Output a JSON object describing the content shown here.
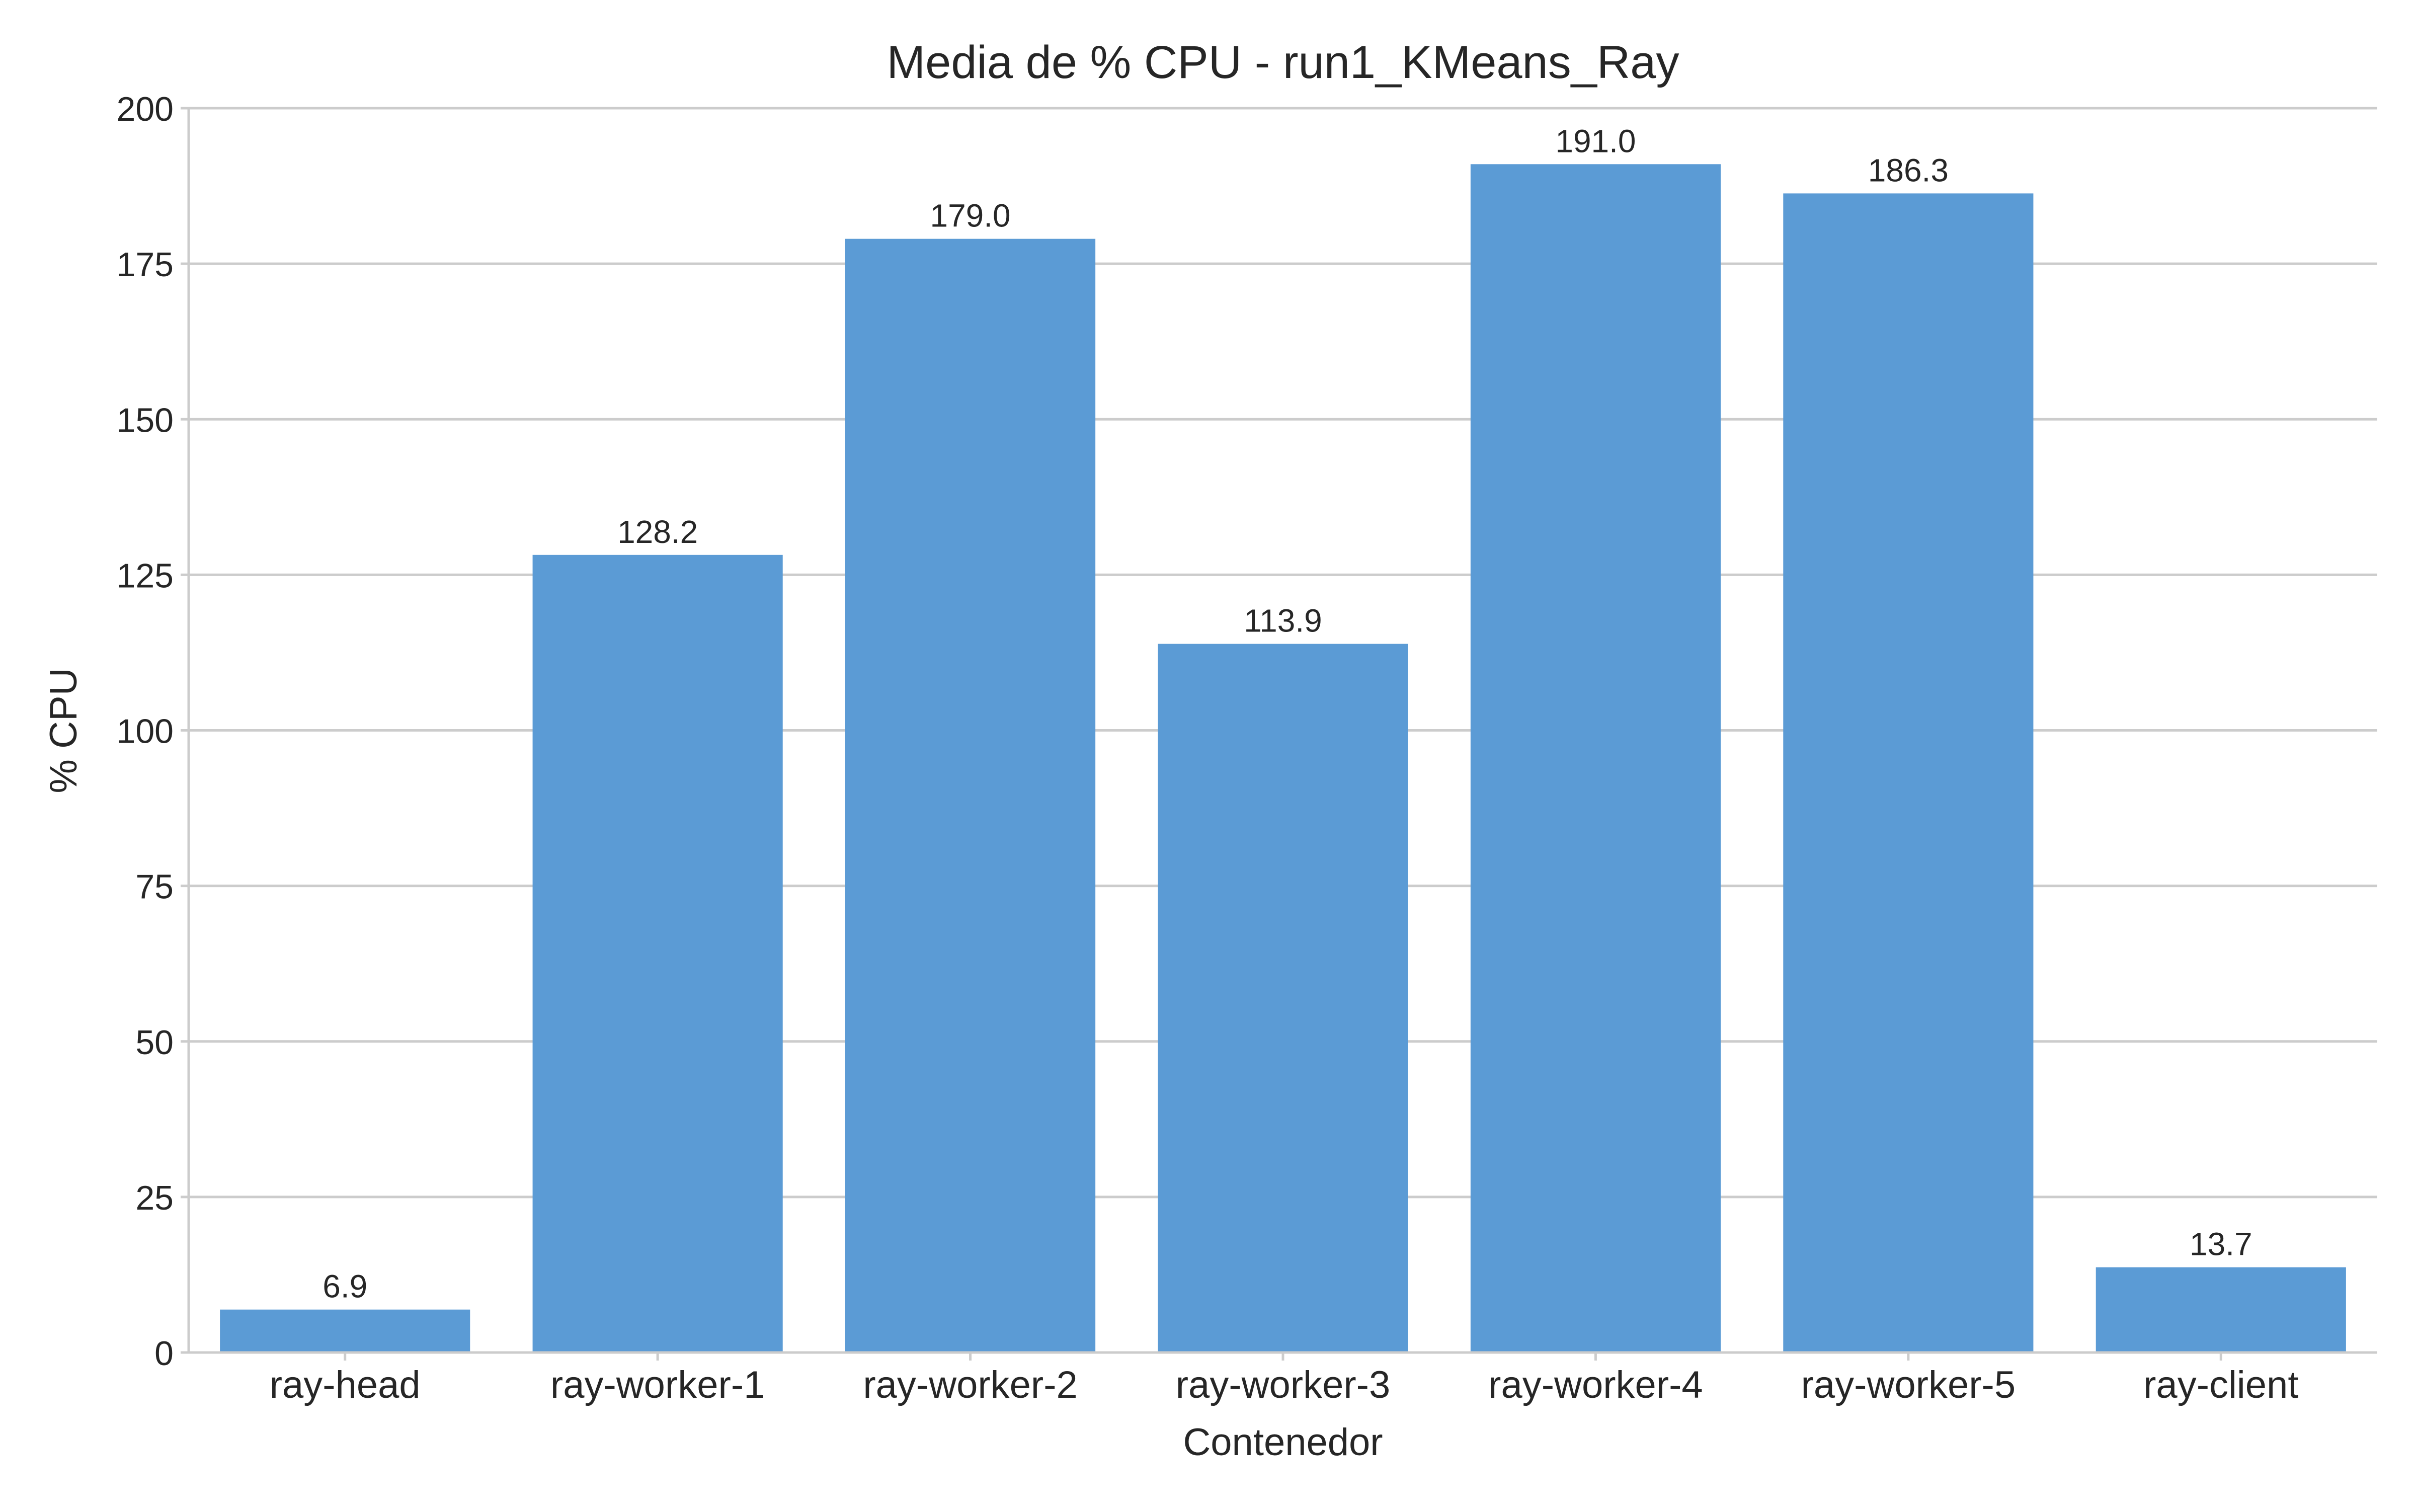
{
  "chart_data": {
    "type": "bar",
    "title": "Media de % CPU - run1_KMeans_Ray",
    "xlabel": "Contenedor",
    "ylabel": "% CPU",
    "categories": [
      "ray-head",
      "ray-worker-1",
      "ray-worker-2",
      "ray-worker-3",
      "ray-worker-4",
      "ray-worker-5",
      "ray-client"
    ],
    "values": [
      6.9,
      128.2,
      179.0,
      113.9,
      191.0,
      186.3,
      13.7
    ],
    "value_labels": [
      "6.9",
      "128.2",
      "179.0",
      "113.9",
      "191.0",
      "186.3",
      "13.7"
    ],
    "ylim": [
      0,
      200
    ],
    "yticks": [
      0,
      25,
      50,
      75,
      100,
      125,
      150,
      175,
      200
    ],
    "grid": true,
    "grid_axis": "y",
    "bar_color": "#5b9bd5",
    "grid_color": "#cccccc",
    "axis_color": "#cccccc"
  }
}
